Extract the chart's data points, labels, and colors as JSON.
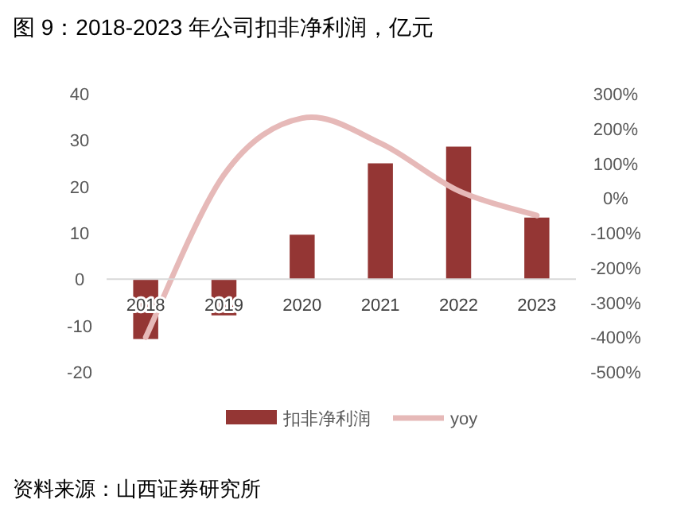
{
  "chart_data": {
    "type": "bar",
    "title": "图 9：2018-2023 年公司扣非净利润，亿元",
    "categories": [
      "2018",
      "2019",
      "2020",
      "2021",
      "2022",
      "2023"
    ],
    "series": [
      {
        "name": "扣非净利润",
        "color": "#943634",
        "values": [
          -12.9,
          -7.8,
          9.6,
          25.0,
          28.6,
          13.3
        ]
      },
      {
        "name": "yoy",
        "type": "line",
        "axis": "y2",
        "color": "#e6b9b8",
        "values": [
          -400,
          67,
          230,
          158,
          21,
          -50
        ]
      }
    ],
    "ylim": [
      -20,
      40
    ],
    "yticks": [
      -20,
      -10,
      0,
      10,
      20,
      30,
      40
    ],
    "y2lim": [
      -500,
      300
    ],
    "y2ticks": [
      {
        "value": -500,
        "label": "-500%"
      },
      {
        "value": -400,
        "label": "-400%"
      },
      {
        "value": -300,
        "label": "-300%"
      },
      {
        "value": -200,
        "label": "-200%"
      },
      {
        "value": -100,
        "label": "-100%"
      },
      {
        "value": 0,
        "label": "0%"
      },
      {
        "value": 100,
        "label": "100%"
      },
      {
        "value": 200,
        "label": "200%"
      },
      {
        "value": 300,
        "label": "300%"
      }
    ],
    "legend": "bottom",
    "grid": false,
    "annotations": [
      "资料来源：山西证券研究所"
    ]
  }
}
